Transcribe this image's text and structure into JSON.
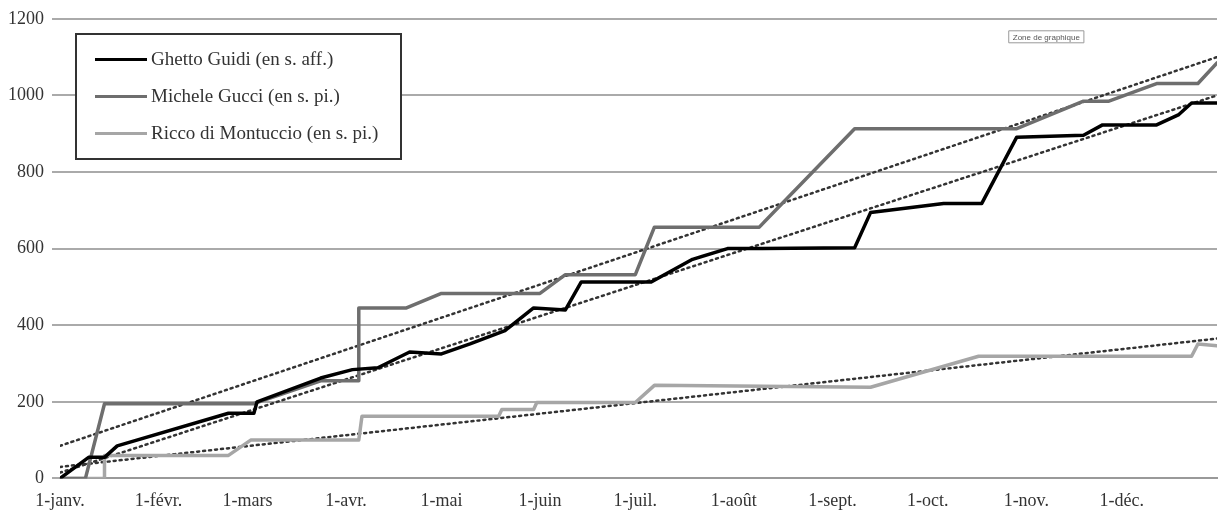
{
  "chart_data": {
    "type": "line",
    "x": [
      "--01-01",
      "--01-10",
      "--01-15",
      "--01-19",
      "--02-23",
      "--03-03",
      "--03-04",
      "--03-24",
      "--04-03",
      "--04-11",
      "--04-21",
      "--05-01",
      "--05-10",
      "--05-21",
      "--05-30",
      "--06-09",
      "--06-14",
      "--07-06",
      "--07-19",
      "--07-30",
      "--09-08",
      "--09-13",
      "--10-06",
      "--10-18",
      "--10-29",
      "--11-19",
      "--11-25",
      "--12-12",
      "--12-19",
      "--12-23",
      "--12-31"
    ],
    "series": [
      {
        "name": "Ghetto Guidi (en s. aff.)",
        "color": "#000000",
        "values": [
          0,
          55,
          55,
          85,
          170,
          170,
          200,
          262,
          284,
          289,
          330,
          325,
          351,
          386,
          445,
          440,
          513,
          513,
          572,
          600,
          602,
          694,
          718,
          718,
          891,
          896,
          923,
          923,
          950,
          980,
          980
        ]
      },
      {
        "name": "Michele Gucci (en s. pi.)",
        "color": "#6e6e6e",
        "x": [
          "--01-01",
          "--01-09",
          "--01-15",
          "--03-03",
          "--03-24",
          "--04-05",
          "--04-05",
          "--04-20",
          "--05-01",
          "--06-01",
          "--06-09",
          "--07-01",
          "--07-07",
          "--08-09",
          "--09-08",
          "--10-29",
          "--11-19",
          "--11-27",
          "--12-12",
          "--12-25",
          "--12-31"
        ],
        "values": [
          0,
          0,
          195,
          195,
          255,
          255,
          445,
          445,
          483,
          483,
          532,
          532,
          656,
          656,
          913,
          913,
          985,
          985,
          1031,
          1031,
          1085
        ]
      },
      {
        "name": "Ricco di Montuccio (en s. pi.)",
        "color": "#a6a6a6",
        "x": [
          "--01-01",
          "--01-15",
          "--01-15",
          "--02-23",
          "--03-02",
          "--04-05",
          "--04-06",
          "--05-19",
          "--05-20",
          "--05-30",
          "--05-31",
          "--07-01",
          "--07-07",
          "--09-13",
          "--10-17",
          "--12-23",
          "--12-25",
          "--12-31"
        ],
        "values": [
          0,
          0,
          60,
          60,
          100,
          100,
          162,
          162,
          180,
          180,
          198,
          198,
          243,
          238,
          319,
          319,
          351,
          346
        ]
      },
      {
        "type": "line",
        "line_style": "dotted",
        "color": "#333333",
        "x": [
          "--01-01",
          "--12-31"
        ],
        "values": [
          15,
          1000
        ]
      },
      {
        "type": "line",
        "line_style": "dotted",
        "color": "#333333",
        "x": [
          "--01-01",
          "--12-31"
        ],
        "values": [
          85,
          1100
        ]
      },
      {
        "type": "line",
        "line_style": "dotted",
        "color": "#333333",
        "x": [
          "--01-01",
          "--12-31"
        ],
        "values": [
          30,
          365
        ]
      }
    ],
    "xlim": [
      "--01-01",
      "--12-31"
    ],
    "xticks": [
      {
        "value": "--01-01",
        "label": "1-janv."
      },
      {
        "value": "--02-01",
        "label": "1-févr."
      },
      {
        "value": "--03-01",
        "label": "1-mars"
      },
      {
        "value": "--04-01",
        "label": "1-avr."
      },
      {
        "value": "--05-01",
        "label": "1-mai"
      },
      {
        "value": "--06-01",
        "label": "1-juin"
      },
      {
        "value": "--07-01",
        "label": "1-juil."
      },
      {
        "value": "--08-01",
        "label": "1-août"
      },
      {
        "value": "--09-01",
        "label": "1-sept."
      },
      {
        "value": "--10-01",
        "label": "1-oct."
      },
      {
        "value": "--11-01",
        "label": "1-nov."
      },
      {
        "value": "--12-01",
        "label": "1-déc."
      }
    ],
    "ylim": [
      0,
      1200
    ],
    "yticks": [
      0,
      200,
      400,
      600,
      800,
      1000,
      1200
    ],
    "grid": "y",
    "legend": "top left",
    "marker": "none",
    "line_style": "solid",
    "annotations": [
      "Zone de graphique"
    ]
  }
}
